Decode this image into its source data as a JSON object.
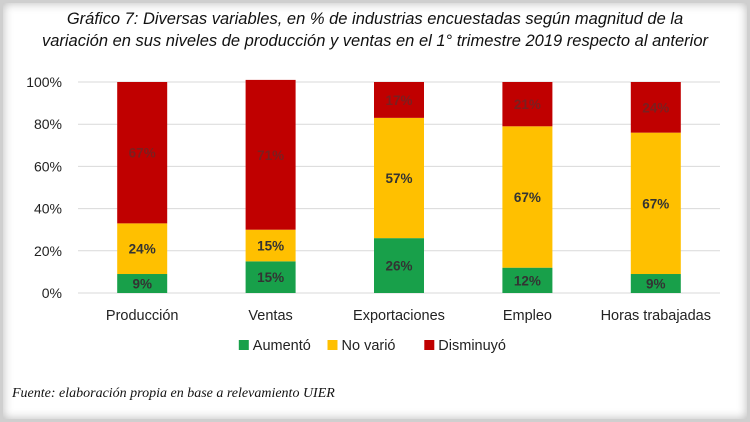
{
  "chart_data": {
    "type": "bar",
    "stacked": true,
    "title_line1": "Gráfico 7: Diversas variables, en  % de industrias encuestadas según magnitud de la",
    "title_line2": "variación en sus niveles de producción y ventas en el 1° trimestre 2019 respecto al anterior",
    "categories": [
      "Producción",
      "Ventas",
      "Exportaciones",
      "Empleo",
      "Horas trabajadas"
    ],
    "series": [
      {
        "name": "Aumentó",
        "color": "#18A04A",
        "values": [
          9,
          15,
          26,
          12,
          9
        ],
        "labels": [
          "9%",
          "15%",
          "26%",
          "12%",
          "9%"
        ]
      },
      {
        "name": "No varió",
        "color": "#FFC000",
        "values": [
          24,
          15,
          57,
          67,
          67
        ],
        "labels": [
          "24%",
          "15%",
          "57%",
          "67%",
          "67%"
        ]
      },
      {
        "name": "Disminuyó",
        "color": "#C00000",
        "values": [
          67,
          71,
          17,
          21,
          24
        ],
        "labels": [
          "67%",
          "71%",
          "17%",
          "21%",
          "24%"
        ]
      }
    ],
    "yticks": [
      "0%",
      "20%",
      "40%",
      "60%",
      "80%",
      "100%"
    ],
    "ylim": [
      0,
      100
    ],
    "legend_position": "bottom",
    "grid": true
  },
  "source": "Fuente: elaboración propia en base a relevamiento UIER"
}
